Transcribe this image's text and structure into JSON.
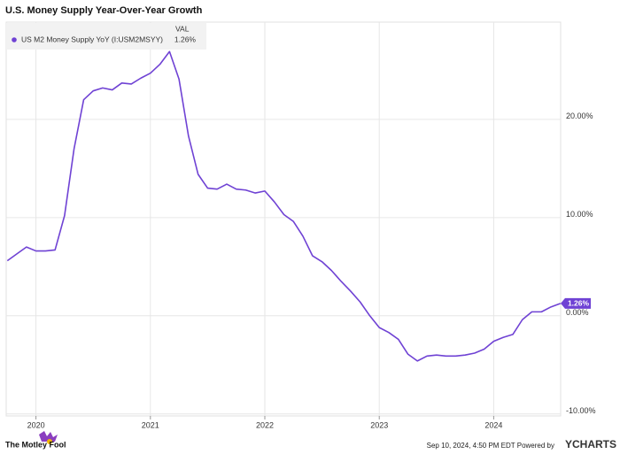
{
  "chart_data": {
    "type": "line",
    "title": "U.S. Money Supply Year-Over-Year Growth",
    "legend_header": "VAL",
    "x": [
      2019.75,
      2019.833,
      2019.917,
      2020.0,
      2020.083,
      2020.167,
      2020.25,
      2020.333,
      2020.417,
      2020.5,
      2020.583,
      2020.667,
      2020.75,
      2020.833,
      2020.917,
      2021.0,
      2021.083,
      2021.167,
      2021.25,
      2021.333,
      2021.417,
      2021.5,
      2021.583,
      2021.667,
      2021.75,
      2021.833,
      2021.917,
      2022.0,
      2022.083,
      2022.167,
      2022.25,
      2022.333,
      2022.417,
      2022.5,
      2022.583,
      2022.667,
      2022.75,
      2022.833,
      2022.917,
      2023.0,
      2023.083,
      2023.167,
      2023.25,
      2023.333,
      2023.417,
      2023.5,
      2023.583,
      2023.667,
      2023.75,
      2023.833,
      2023.917,
      2024.0,
      2024.083,
      2024.167,
      2024.25,
      2024.333,
      2024.417,
      2024.5,
      2024.583
    ],
    "series": [
      {
        "name": "US M2 Money Supply YoY (I:USM2MSYY)",
        "color": "#6f42d4",
        "values": [
          5.6,
          6.3,
          7.0,
          6.6,
          6.6,
          6.7,
          10.2,
          17.0,
          22.0,
          22.9,
          23.2,
          23.0,
          23.7,
          23.6,
          24.2,
          24.7,
          25.6,
          26.9,
          24.1,
          18.3,
          14.4,
          13.0,
          12.9,
          13.4,
          12.9,
          12.8,
          12.5,
          12.7,
          11.6,
          10.3,
          9.6,
          8.1,
          6.1,
          5.5,
          4.6,
          3.5,
          2.5,
          1.4,
          0.0,
          -1.2,
          -1.7,
          -2.4,
          -3.9,
          -4.6,
          -4.1,
          -4.0,
          -4.1,
          -4.1,
          -4.0,
          -3.8,
          -3.4,
          -2.6,
          -2.2,
          -1.9,
          -0.4,
          0.4,
          0.4,
          0.9,
          1.26
        ],
        "latest": {
          "value": 1.26,
          "label": "1.26%"
        }
      }
    ],
    "xlim": [
      2019.74,
      2024.585
    ],
    "xticks": [
      2020,
      2021,
      2022,
      2023,
      2024
    ],
    "ylim": [
      -10.2,
      29.9
    ],
    "yticks": [
      {
        "value": -10,
        "label": "-10.00%"
      },
      {
        "value": 0,
        "label": "0.00%"
      },
      {
        "value": 10,
        "label": "10.00%"
      },
      {
        "value": 20,
        "label": "20.00%"
      }
    ],
    "grid": true
  },
  "footer": {
    "brand": "The Motley Fool",
    "timestamp": "Sep 10, 2024, 4:50 PM EDT  Powered by",
    "provider": "YCHARTS"
  }
}
